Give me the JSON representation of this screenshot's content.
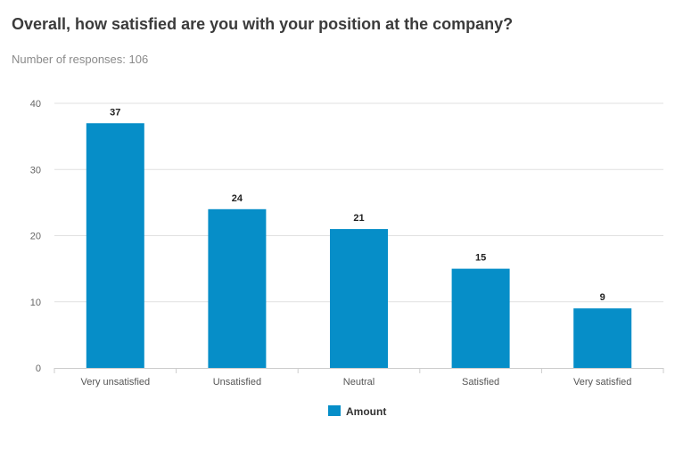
{
  "page": {
    "title": "Overall, how satisfied are you with your position at the company?",
    "subtitle": "Number of responses: 106"
  },
  "chart_data": {
    "type": "bar",
    "title": "",
    "xlabel": "",
    "ylabel": "",
    "categories": [
      "Very unsatisfied",
      "Unsatisfied",
      "Neutral",
      "Satisfied",
      "Very satisfied"
    ],
    "series": [
      {
        "name": "Amount",
        "values": [
          37,
          24,
          21,
          15,
          9
        ],
        "color": "#068ec8"
      }
    ],
    "ylim": [
      0,
      40
    ],
    "yticks": [
      "0",
      "10",
      "20",
      "30",
      "40"
    ],
    "data_labels": [
      "37",
      "24",
      "21",
      "15",
      "9"
    ],
    "grid": true,
    "legend": "bottom-center"
  }
}
